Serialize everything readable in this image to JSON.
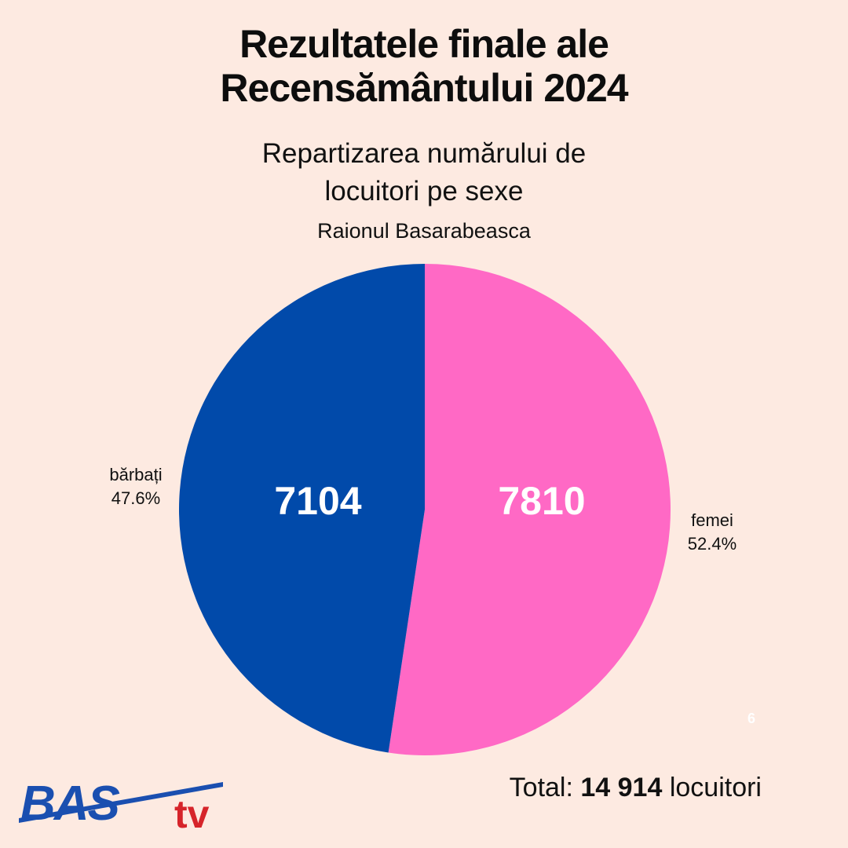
{
  "header": {
    "title_line1": "Rezultatele finale ale",
    "title_line2": "Recensământului 2024",
    "subtitle_line1": "Repartizarea numărului de",
    "subtitle_line2": "locuitori pe sexe",
    "region": "Raionul Basarabeasca"
  },
  "chart_data": {
    "type": "pie",
    "slices": [
      {
        "label": "femei",
        "value": 7810,
        "value_label": "7810",
        "percent_label": "52.4%",
        "color": "#ff69c5"
      },
      {
        "label": "bărbați",
        "value": 7104,
        "value_label": "7104",
        "percent_label": "47.6%",
        "color": "#014aaa"
      }
    ]
  },
  "footer": {
    "total_prefix": "Total:",
    "total_value": "14 914",
    "total_suffix": "locuitori",
    "page_number": "6",
    "logo_text_main": "BAS",
    "logo_text_tv": "tv"
  },
  "colors": {
    "background": "#fdeae1",
    "male": "#014aaa",
    "female": "#ff69c5",
    "logo_blue": "#1a4fb0",
    "logo_red": "#d6242a"
  }
}
